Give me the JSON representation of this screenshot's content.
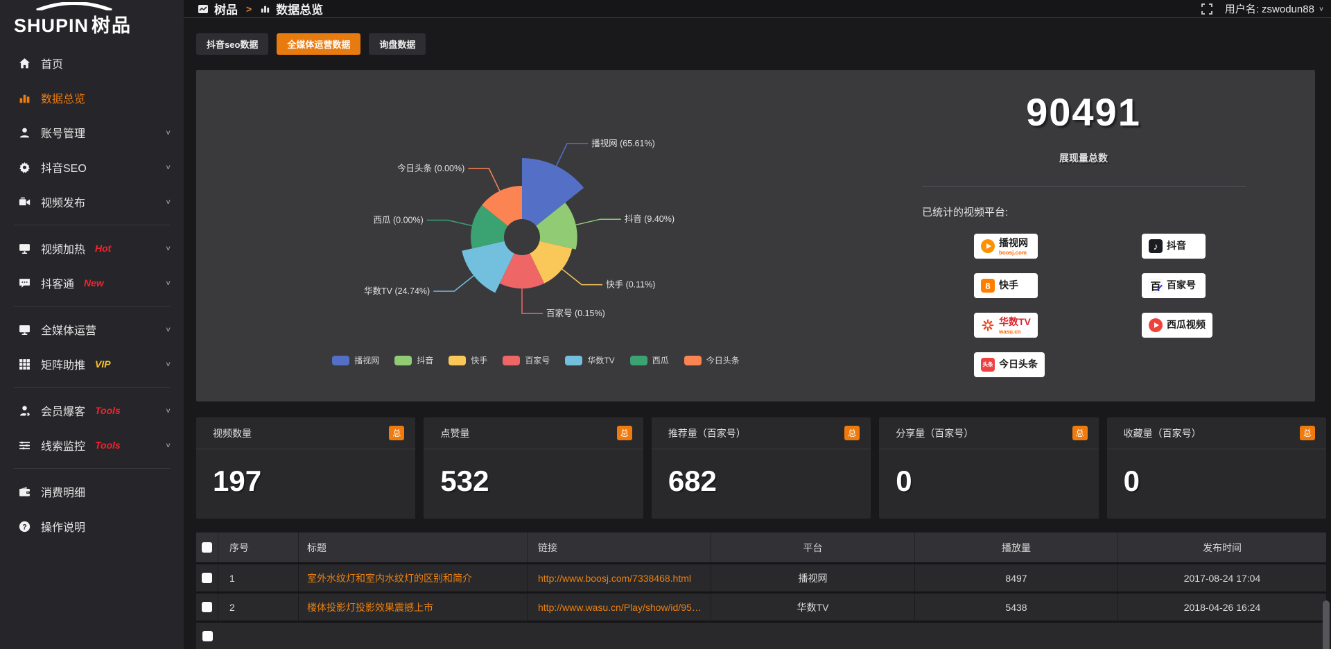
{
  "logo": {
    "en": "SHUPIN",
    "cn": "树品"
  },
  "topbar": {
    "breadcrumb_app": "树品",
    "breadcrumb_sep": ">",
    "breadcrumb_page": "数据总览",
    "username": "用户名: zswodun88"
  },
  "tabs": [
    {
      "label": "抖音seo数据",
      "active": false
    },
    {
      "label": "全媒体运营数据",
      "active": true
    },
    {
      "label": "询盘数据",
      "active": false
    }
  ],
  "sidebar": {
    "items": [
      {
        "label": "首页",
        "icon": "home"
      },
      {
        "label": "数据总览",
        "icon": "bar-chart",
        "active": true
      },
      {
        "label": "账号管理",
        "icon": "user",
        "chevron": true
      },
      {
        "label": "抖音SEO",
        "icon": "gear",
        "chevron": true
      },
      {
        "label": "视频发布",
        "icon": "video-publish",
        "chevron": true,
        "divider_after": true
      },
      {
        "label": "视频加热",
        "icon": "screen",
        "badge": "Hot",
        "badge_color": "#f5222d",
        "chevron": true
      },
      {
        "label": "抖客通",
        "icon": "chat",
        "badge": "New",
        "badge_color": "#f5222d",
        "chevron": true,
        "divider_after": true
      },
      {
        "label": "全媒体运营",
        "icon": "monitor",
        "chevron": true
      },
      {
        "label": "矩阵助推",
        "icon": "grid",
        "badge": "VIP",
        "badge_color": "#f7c02d",
        "chevron": true,
        "divider_after": true
      },
      {
        "label": "会员爆客",
        "icon": "member",
        "badge": "Tools",
        "badge_color": "#f5222d",
        "chevron": true
      },
      {
        "label": "线索监控",
        "icon": "sliders",
        "badge": "Tools",
        "badge_color": "#f5222d",
        "chevron": true,
        "divider_after": true
      },
      {
        "label": "消费明细",
        "icon": "wallet"
      },
      {
        "label": "操作说明",
        "icon": "question"
      }
    ]
  },
  "chart_data": {
    "type": "pie",
    "variant": "nightingale-rose",
    "unit": "%",
    "legend_position": "bottom",
    "series": [
      {
        "name": "播视网",
        "value": 65.61,
        "color": "#5470c6"
      },
      {
        "name": "抖音",
        "value": 9.4,
        "color": "#91cc75"
      },
      {
        "name": "快手",
        "value": 0.11,
        "color": "#fac858"
      },
      {
        "name": "百家号",
        "value": 0.15,
        "color": "#ee6666"
      },
      {
        "name": "华数TV",
        "value": 24.74,
        "color": "#73c0de"
      },
      {
        "name": "西瓜",
        "value": 0.0,
        "color": "#3ba272"
      },
      {
        "name": "今日头条",
        "value": 0.0,
        "color": "#fc8452"
      }
    ],
    "label_format": "{name} ({value}%)",
    "legend": [
      "播视网",
      "抖音",
      "快手",
      "百家号",
      "华数TV",
      "西瓜",
      "今日头条"
    ]
  },
  "summary": {
    "total": "90491",
    "total_label": "展现量总数",
    "platforms_title": "已统计的视频平台:",
    "platforms": [
      {
        "name": "播视网",
        "sub": "boosj.com",
        "icon": "play",
        "icon_bg": "#ff9000"
      },
      {
        "name": "抖音",
        "sub": "",
        "icon": "note",
        "icon_bg": "#1b1b22"
      },
      {
        "name": "快手",
        "sub": "",
        "icon": "kuaishou",
        "icon_bg": "#ff7e00"
      },
      {
        "name": "百家号",
        "sub": "",
        "icon": "bai",
        "icon_bg": "#ffffff"
      },
      {
        "name": "华数TV",
        "sub": "wasu.cn",
        "icon": "star",
        "icon_bg": "#ffffff",
        "name_color": "#d8262c"
      },
      {
        "name": "西瓜视频",
        "sub": "",
        "icon": "play",
        "icon_bg": "#f2413a"
      },
      {
        "name": "今日头条",
        "sub": "",
        "icon": "toutiao",
        "icon_bg": "#f04142"
      }
    ]
  },
  "stat_cards": [
    {
      "label": "视频数量",
      "badge": "总",
      "value": "197"
    },
    {
      "label": "点赞量",
      "badge": "总",
      "value": "532"
    },
    {
      "label": "推荐量（百家号）",
      "badge": "总",
      "value": "682"
    },
    {
      "label": "分享量（百家号）",
      "badge": "总",
      "value": "0"
    },
    {
      "label": "收藏量（百家号）",
      "badge": "总",
      "value": "0"
    }
  ],
  "table": {
    "columns": [
      "序号",
      "标题",
      "链接",
      "平台",
      "播放量",
      "发布时间"
    ],
    "rows": [
      {
        "index": "1",
        "title": "室外水纹灯和室内水纹灯的区别和简介",
        "link": "http://www.boosj.com/7338468.html",
        "platform": "播视网",
        "views": "8497",
        "time": "2017-08-24 17:04"
      },
      {
        "index": "2",
        "title": "楼体投影灯投影效果震撼上市",
        "link": "http://www.wasu.cn/Play/show/id/952...",
        "platform": "华数TV",
        "views": "5438",
        "time": "2018-04-26 16:24"
      }
    ]
  },
  "colors": {
    "accent": "#ef7b0e",
    "link": "#ea8010",
    "panel": "#3a3a3d"
  }
}
